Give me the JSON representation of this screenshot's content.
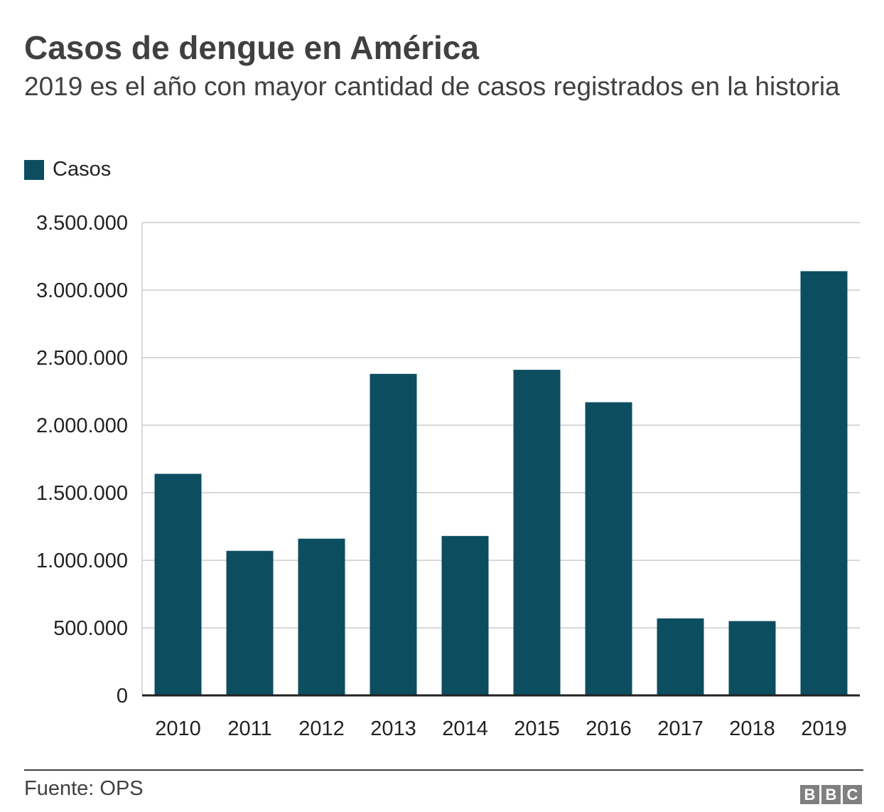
{
  "header": {
    "title": "Casos de dengue en América",
    "subtitle": "2019 es el año con mayor cantidad de casos registrados en la historia"
  },
  "footer": {
    "source": "Fuente: OPS",
    "logo_letters": [
      "B",
      "B",
      "C"
    ]
  },
  "colors": {
    "bar": "#0c4d60",
    "grid": "#cccccc",
    "axis": "#222222"
  },
  "chart_data": {
    "type": "bar",
    "title": "Casos de dengue en América",
    "subtitle": "2019 es el año con mayor cantidad de casos registrados en la historia",
    "categories": [
      "2010",
      "2011",
      "2012",
      "2013",
      "2014",
      "2015",
      "2016",
      "2017",
      "2018",
      "2019"
    ],
    "series": [
      {
        "name": "Casos",
        "values": [
          1640000,
          1070000,
          1160000,
          2380000,
          1180000,
          2410000,
          2170000,
          570000,
          550000,
          3140000
        ]
      }
    ],
    "legend": [
      "Casos"
    ],
    "legend_position": "top-left",
    "xlabel": "",
    "ylabel": "",
    "ylim": [
      0,
      3500000
    ],
    "yticks": [
      0,
      500000,
      1000000,
      1500000,
      2000000,
      2500000,
      3000000,
      3500000
    ],
    "ytick_labels": [
      "0",
      "500.000",
      "1.000.000",
      "1.500.000",
      "2.000.000",
      "2.500.000",
      "3.000.000",
      "3.500.000"
    ],
    "grid": true
  }
}
